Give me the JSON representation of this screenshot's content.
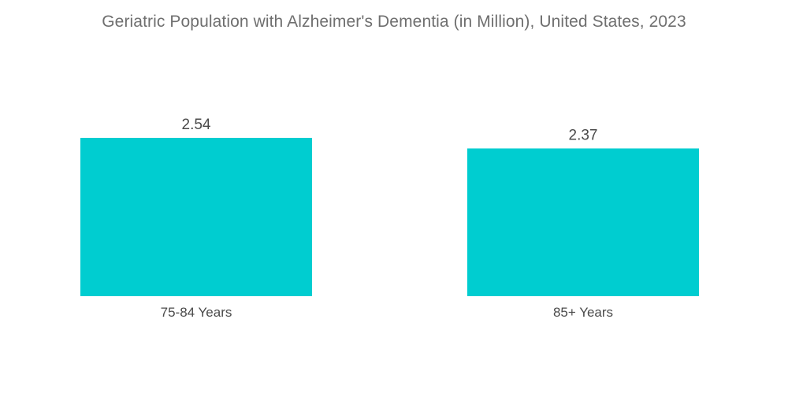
{
  "chart_data": {
    "type": "bar",
    "title": "Geriatric Population with Alzheimer's Dementia (in Million), United States, 2023",
    "categories": [
      "75-84 Years",
      "85+ Years"
    ],
    "values": [
      2.54,
      2.37
    ],
    "value_labels": [
      "2.54",
      "2.37"
    ],
    "xlabel": "",
    "ylabel": "",
    "ylim": [
      0,
      2.54
    ],
    "grid": false,
    "bar_color": "#00CDD0"
  }
}
